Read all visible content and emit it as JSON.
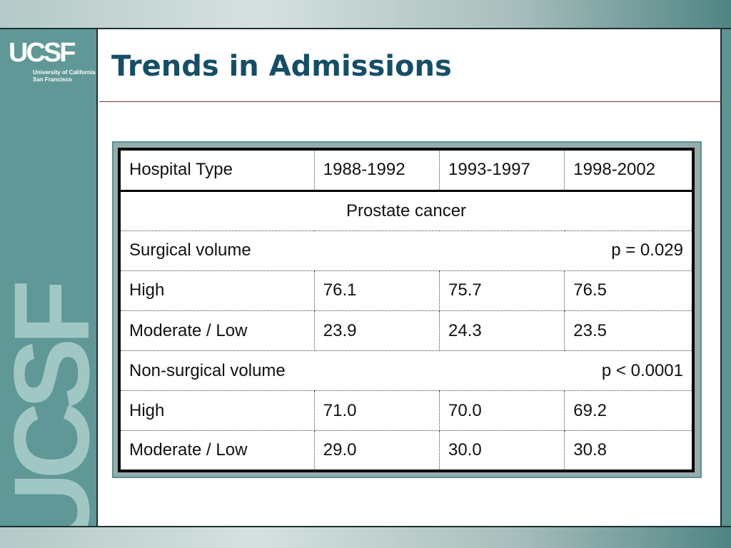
{
  "logo": {
    "mark": "UCSF",
    "line1": "University of California",
    "line2": "San Francisco"
  },
  "watermark": "UCSF",
  "title": "Trends in Admissions",
  "table": {
    "headers": [
      "Hospital Type",
      "1988-1992",
      "1993-1997",
      "1998-2002"
    ],
    "section": "Prostate cancer",
    "groups": [
      {
        "label": "Surgical volume",
        "p_value": "p = 0.029",
        "rows": [
          {
            "label": "High",
            "values": [
              "76.1",
              "75.7",
              "76.5"
            ]
          },
          {
            "label": "Moderate / Low",
            "values": [
              "23.9",
              "24.3",
              "23.5"
            ]
          }
        ]
      },
      {
        "label": "Non-surgical volume",
        "p_value": "p < 0.0001",
        "rows": [
          {
            "label": "High",
            "values": [
              "71.0",
              "70.0",
              "69.2"
            ]
          },
          {
            "label": "Moderate / Low",
            "values": [
              "29.0",
              "30.0",
              "30.8"
            ]
          }
        ]
      }
    ]
  },
  "colors": {
    "title": "#164e66",
    "sidebar": "#5f9896",
    "watermark": "#a9cdcb"
  }
}
